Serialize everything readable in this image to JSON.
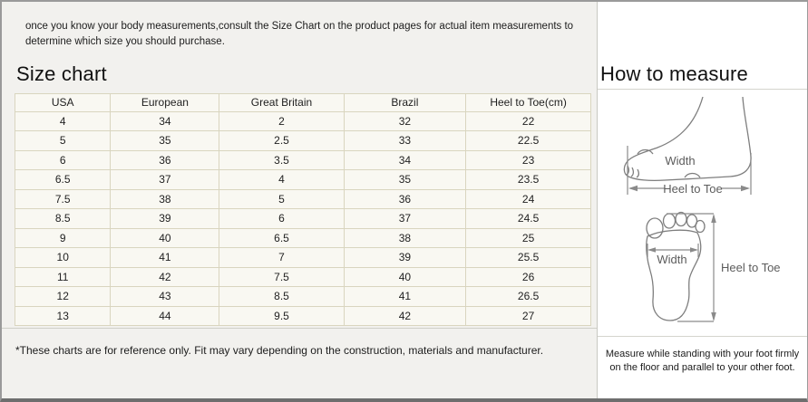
{
  "intro": {
    "text": "once you know your body measurements,consult the Size Chart on the product pages for actual item measurements to determine which size you should purchase."
  },
  "size_chart": {
    "title": "Size chart",
    "table": {
      "headers": [
        "USA",
        "European",
        "Great Britain",
        "Brazil",
        "Heel to Toe(cm)"
      ],
      "rows": [
        [
          "4",
          "34",
          "2",
          "32",
          "22"
        ],
        [
          "5",
          "35",
          "2.5",
          "33",
          "22.5"
        ],
        [
          "6",
          "36",
          "3.5",
          "34",
          "23"
        ],
        [
          "6.5",
          "37",
          "4",
          "35",
          "23.5"
        ],
        [
          "7.5",
          "38",
          "5",
          "36",
          "24"
        ],
        [
          "8.5",
          "39",
          "6",
          "37",
          "24.5"
        ],
        [
          "9",
          "40",
          "6.5",
          "38",
          "25"
        ],
        [
          "10",
          "41",
          "7",
          "39",
          "25.5"
        ],
        [
          "11",
          "42",
          "7.5",
          "40",
          "26"
        ],
        [
          "12",
          "43",
          "8.5",
          "41",
          "26.5"
        ],
        [
          "13",
          "44",
          "9.5",
          "42",
          "27"
        ]
      ]
    },
    "footnote": "*These charts are for reference only. Fit may vary depending on the construction, materials and manufacturer."
  },
  "how_to_measure": {
    "title": "How to measure",
    "side_view": {
      "width_label": "Width",
      "heel_to_toe_label": "Heel to Toe"
    },
    "sole_view": {
      "width_label": "Width",
      "heel_to_toe_label": "Heel to Toe"
    },
    "footnote": "Measure while standing with your foot firmly on the floor and parallel to your other foot."
  },
  "colors": {
    "left_panel_bg": "#f2f1ee",
    "right_panel_bg": "#ffffff",
    "table_cell_bg": "#f9f8f2",
    "table_border": "#d9d5bf",
    "frame_border": "#9a9a9a",
    "diagram_stroke": "#8a8a8a"
  }
}
